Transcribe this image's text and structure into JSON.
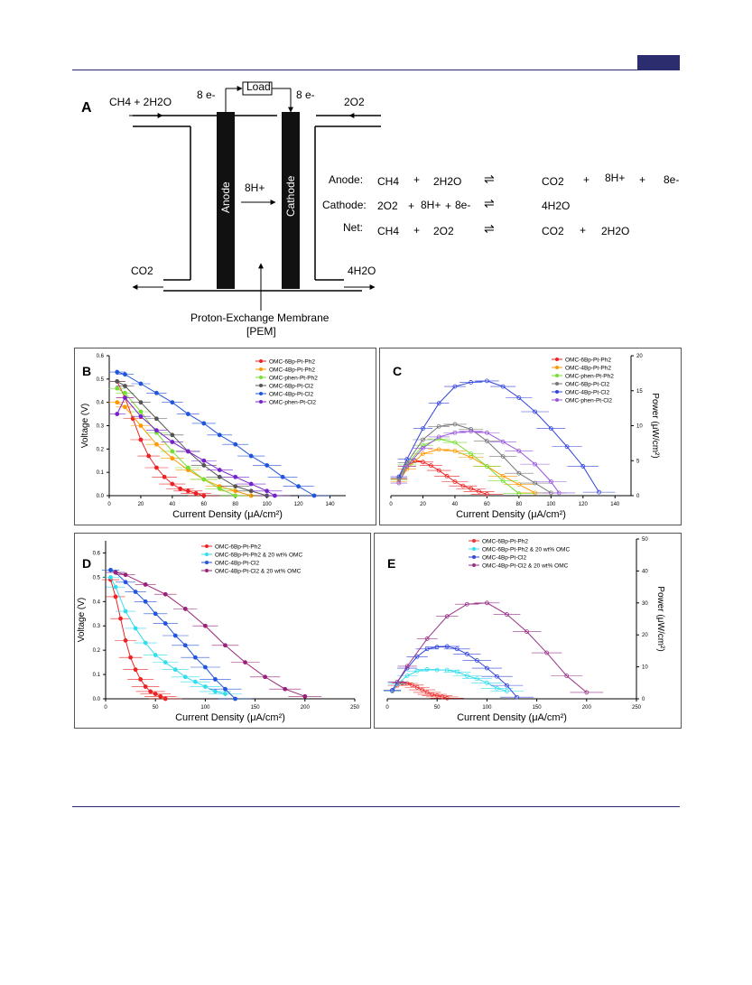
{
  "diagram": {
    "panel_label": "A",
    "left_input": "CH4 + 2H2O",
    "right_input": "2O2",
    "left_output": "CO2",
    "right_output": "4H2O",
    "electrons_left": "8 e-",
    "electrons_right": "8 e-",
    "load_label": "Load",
    "anode_label": "Anode",
    "cathode_label": "Cathode",
    "proton_label": "8H+",
    "membrane_label_1": "Proton-Exchange Membrane",
    "membrane_label_2": "[PEM]",
    "equations": [
      {
        "label": "Anode:",
        "lhs1": "CH4",
        "plus1": "+",
        "lhs2": "2H2O",
        "rhs1": "CO2",
        "plus2": "+",
        "rhs2": "8H+",
        "plus3": "+",
        "rhs3": "8e-"
      },
      {
        "label": "Cathode:",
        "lhs1": "2O2",
        "plus1": "+",
        "lhs2": "8H+",
        "plus1b": "+",
        "lhs3": "8e-",
        "rhs1": "4H2O"
      },
      {
        "label": "Net:",
        "lhs1": "CH4",
        "plus1": "+",
        "lhs2": "2O2",
        "rhs1": "CO2",
        "plus2": "+",
        "rhs2": "2H2O"
      }
    ]
  },
  "chart_data": [
    {
      "panel": "B",
      "type": "line",
      "xlabel": "Current Density (μA/cm²)",
      "ylabel": "Voltage (V)",
      "xlim": [
        0,
        150
      ],
      "ylim": [
        0,
        0.6
      ],
      "xticks": [
        0,
        20,
        40,
        60,
        80,
        100,
        120,
        140
      ],
      "yticks": [
        0.0,
        0.1,
        0.2,
        0.3,
        0.4,
        0.5,
        0.6
      ],
      "legend_position": "top-right",
      "series": [
        {
          "name": "OMC-6Bp-Pt-Ph2",
          "color": "#ee2222",
          "x": [
            5,
            10,
            15,
            20,
            25,
            30,
            35,
            40,
            45,
            50,
            55,
            60
          ],
          "y": [
            0.49,
            0.42,
            0.33,
            0.24,
            0.17,
            0.12,
            0.08,
            0.05,
            0.03,
            0.02,
            0.01,
            0.0
          ]
        },
        {
          "name": "OMC-4Bp-Pt-Ph2",
          "color": "#ff9900",
          "x": [
            5,
            10,
            20,
            30,
            40,
            50,
            60,
            70,
            80,
            90
          ],
          "y": [
            0.4,
            0.38,
            0.3,
            0.22,
            0.16,
            0.11,
            0.07,
            0.04,
            0.02,
            0.0
          ]
        },
        {
          "name": "OMC-phen-Pt-Ph2",
          "color": "#77dd33",
          "x": [
            5,
            10,
            20,
            30,
            40,
            50,
            60,
            70,
            80
          ],
          "y": [
            0.46,
            0.44,
            0.36,
            0.27,
            0.19,
            0.12,
            0.07,
            0.03,
            0.0
          ]
        },
        {
          "name": "OMC-6Bp-Pt-Cl2",
          "color": "#555555",
          "x": [
            5,
            10,
            20,
            30,
            40,
            50,
            60,
            70,
            80,
            90,
            100
          ],
          "y": [
            0.49,
            0.47,
            0.4,
            0.33,
            0.26,
            0.19,
            0.13,
            0.08,
            0.04,
            0.02,
            0.0
          ]
        },
        {
          "name": "OMC-4Bp-Pt-Cl2",
          "color": "#2255dd",
          "x": [
            5,
            10,
            20,
            30,
            40,
            50,
            60,
            70,
            80,
            90,
            100,
            110,
            120,
            130
          ],
          "y": [
            0.53,
            0.52,
            0.48,
            0.44,
            0.4,
            0.35,
            0.31,
            0.26,
            0.22,
            0.17,
            0.13,
            0.08,
            0.04,
            0.0
          ]
        },
        {
          "name": "OMC-phen-Pt-Cl2",
          "color": "#7722cc",
          "x": [
            5,
            10,
            20,
            30,
            40,
            50,
            60,
            70,
            80,
            90,
            100,
            105
          ],
          "y": [
            0.35,
            0.42,
            0.34,
            0.28,
            0.23,
            0.19,
            0.15,
            0.11,
            0.08,
            0.05,
            0.02,
            0.0
          ]
        }
      ]
    },
    {
      "panel": "C",
      "type": "line",
      "xlabel": "Current Density (μA/cm²)",
      "ylabel": "Power (μW/cm²)",
      "xlim": [
        0,
        150
      ],
      "ylim": [
        0,
        20
      ],
      "xticks": [
        0,
        20,
        40,
        60,
        80,
        100,
        120,
        140
      ],
      "yticks": [
        0,
        5,
        10,
        15,
        20
      ],
      "legend_position": "top-right",
      "series": [
        {
          "name": "OMC-6Bp-Pt-Ph2",
          "color": "#ee2222",
          "x": [
            5,
            10,
            15,
            20,
            25,
            30,
            35,
            40,
            45,
            50,
            55,
            60
          ],
          "y": [
            2.4,
            4.2,
            5.0,
            4.8,
            4.3,
            3.6,
            2.8,
            2.0,
            1.4,
            1.0,
            0.6,
            0.2
          ]
        },
        {
          "name": "OMC-4Bp-Pt-Ph2",
          "color": "#ff9900",
          "x": [
            5,
            10,
            20,
            30,
            40,
            50,
            60,
            70,
            80,
            90
          ],
          "y": [
            2.0,
            3.8,
            6.0,
            6.6,
            6.4,
            5.5,
            4.2,
            2.8,
            1.6,
            0.4
          ]
        },
        {
          "name": "OMC-phen-Pt-Ph2",
          "color": "#77dd33",
          "x": [
            5,
            10,
            20,
            30,
            40,
            50,
            60,
            70,
            80
          ],
          "y": [
            2.3,
            4.4,
            7.2,
            8.1,
            7.6,
            6.0,
            4.2,
            2.1,
            0.3
          ]
        },
        {
          "name": "OMC-6Bp-Pt-Cl2",
          "color": "#777777",
          "x": [
            5,
            10,
            20,
            30,
            40,
            50,
            60,
            70,
            80,
            90,
            100
          ],
          "y": [
            2.5,
            4.7,
            8.0,
            9.9,
            10.2,
            9.5,
            7.8,
            5.6,
            3.2,
            1.8,
            0.4
          ]
        },
        {
          "name": "OMC-4Bp-Pt-Cl2",
          "color": "#3344dd",
          "x": [
            5,
            10,
            20,
            30,
            40,
            50,
            60,
            70,
            80,
            90,
            100,
            110,
            120,
            130
          ],
          "y": [
            2.7,
            5.2,
            9.6,
            13.2,
            15.6,
            16.2,
            16.4,
            15.6,
            14.0,
            12.0,
            9.6,
            7.0,
            4.2,
            0.5
          ]
        },
        {
          "name": "OMC-phen-Pt-Cl2",
          "color": "#9955dd",
          "x": [
            5,
            10,
            20,
            30,
            40,
            50,
            60,
            70,
            80,
            90,
            100,
            105
          ],
          "y": [
            1.8,
            4.2,
            6.8,
            8.4,
            9.0,
            9.2,
            9.0,
            7.7,
            6.4,
            4.5,
            2.0,
            0.4
          ]
        }
      ]
    },
    {
      "panel": "D",
      "type": "line",
      "xlabel": "Current Density (μA/cm²)",
      "ylabel": "Voltage (V)",
      "xlim": [
        0,
        250
      ],
      "ylim": [
        0,
        0.65
      ],
      "xticks": [
        0,
        50,
        100,
        150,
        200,
        250
      ],
      "yticks": [
        0.0,
        0.1,
        0.2,
        0.3,
        0.4,
        0.5,
        0.6
      ],
      "legend_position": "top-right",
      "series": [
        {
          "name": "OMC-6Bp-Pt-Ph2",
          "color": "#ee2222",
          "x": [
            5,
            10,
            15,
            20,
            25,
            30,
            35,
            40,
            45,
            50,
            55,
            60
          ],
          "y": [
            0.49,
            0.42,
            0.33,
            0.24,
            0.17,
            0.12,
            0.08,
            0.05,
            0.03,
            0.02,
            0.01,
            0.0
          ]
        },
        {
          "name": "OMC-6Bp-Pt-Ph2 & 20 wt% OMC",
          "color": "#33ddee",
          "x": [
            5,
            10,
            20,
            30,
            40,
            50,
            60,
            70,
            80,
            90,
            100,
            110,
            120
          ],
          "y": [
            0.5,
            0.46,
            0.36,
            0.29,
            0.23,
            0.18,
            0.15,
            0.12,
            0.09,
            0.07,
            0.05,
            0.03,
            0.02
          ]
        },
        {
          "name": "OMC-4Bp-Pt-Cl2",
          "color": "#2255dd",
          "x": [
            5,
            10,
            20,
            30,
            40,
            50,
            60,
            70,
            80,
            90,
            100,
            110,
            120,
            130
          ],
          "y": [
            0.53,
            0.52,
            0.48,
            0.44,
            0.4,
            0.35,
            0.31,
            0.26,
            0.22,
            0.17,
            0.13,
            0.08,
            0.04,
            0.0
          ]
        },
        {
          "name": "OMC-4Bp-Pt-Cl2 & 20 wt% OMC",
          "color": "#992277",
          "x": [
            10,
            20,
            40,
            60,
            80,
            100,
            120,
            140,
            160,
            180,
            200
          ],
          "y": [
            0.52,
            0.51,
            0.47,
            0.43,
            0.37,
            0.3,
            0.22,
            0.15,
            0.09,
            0.04,
            0.01
          ]
        }
      ]
    },
    {
      "panel": "E",
      "type": "line",
      "xlabel": "Current Density (μA/cm²)",
      "ylabel": "Power (μW/cm²)",
      "xlim": [
        0,
        250
      ],
      "ylim": [
        0,
        50
      ],
      "xticks": [
        0,
        50,
        100,
        150,
        200,
        250
      ],
      "yticks": [
        0,
        10,
        20,
        30,
        40,
        50
      ],
      "legend_position": "top-left",
      "series": [
        {
          "name": "OMC-6Bp-Pt-Ph2",
          "color": "#ee3333",
          "x": [
            5,
            10,
            15,
            20,
            25,
            30,
            35,
            40,
            45,
            50,
            55,
            60
          ],
          "y": [
            2.4,
            4.2,
            5.0,
            4.8,
            4.3,
            3.6,
            2.8,
            2.0,
            1.4,
            1.0,
            0.6,
            0.2
          ]
        },
        {
          "name": "OMC-6Bp-Pt-Ph2 & 20 wt% OMC",
          "color": "#33ddee",
          "x": [
            5,
            10,
            20,
            30,
            40,
            50,
            60,
            70,
            80,
            90,
            100,
            110,
            120
          ],
          "y": [
            2.5,
            4.6,
            7.2,
            8.7,
            9.2,
            9.0,
            9.0,
            8.4,
            7.2,
            6.3,
            5.0,
            3.3,
            2.4
          ]
        },
        {
          "name": "OMC-4Bp-Pt-Cl2",
          "color": "#3344dd",
          "x": [
            5,
            10,
            20,
            30,
            40,
            50,
            60,
            70,
            80,
            90,
            100,
            110,
            120,
            130
          ],
          "y": [
            2.7,
            5.2,
            9.6,
            13.2,
            15.6,
            16.2,
            16.4,
            15.6,
            14.0,
            12.0,
            9.6,
            7.0,
            4.2,
            0.5
          ]
        },
        {
          "name": "OMC-4Bp-Pt-Cl2 & 20 wt% OMC",
          "color": "#993388",
          "x": [
            10,
            20,
            40,
            60,
            80,
            100,
            120,
            140,
            160,
            180,
            200
          ],
          "y": [
            5.2,
            10.2,
            18.8,
            25.8,
            29.6,
            30.0,
            26.4,
            21.0,
            14.4,
            7.2,
            2.0
          ]
        }
      ]
    }
  ]
}
